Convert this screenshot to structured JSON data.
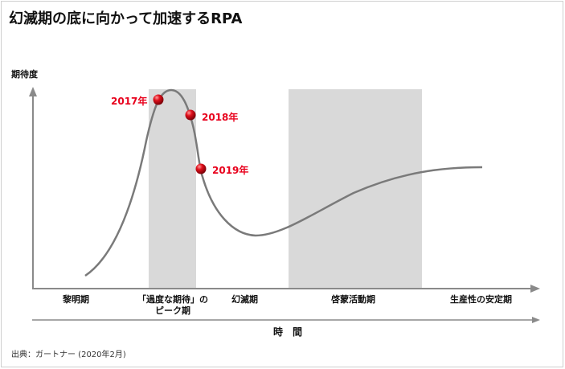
{
  "title": "幻滅期の底に向かって加速するRPA",
  "y_axis_label": "期待度",
  "x_axis_label": "時　間",
  "phases": [
    "黎明期",
    "「過度な期待」の\nピーク期",
    "幻滅期",
    "啓蒙活動期",
    "生産性の安定期"
  ],
  "milestones": [
    {
      "label": "2017年"
    },
    {
      "label": "2018年"
    },
    {
      "label": "2019年"
    }
  ],
  "source": "出典：ガートナー (2020年2月)",
  "colors": {
    "curve": "#7a7a7a",
    "highlight_band": "#d9d9d9",
    "milestone_label": "#e8001c",
    "marker": "#c8101e",
    "axis": "#8a8a8a"
  }
}
